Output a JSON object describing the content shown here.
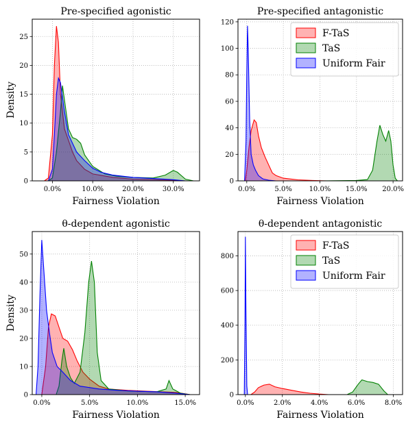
{
  "chart_data": [
    {
      "type": "area",
      "title": "Pre-specified agonistic",
      "xlabel": "Fairness Violation",
      "ylabel": "Density",
      "xlim": [
        -0.05,
        0.365
      ],
      "ylim": [
        0,
        28
      ],
      "xticks": [
        0.0,
        0.1,
        0.2,
        0.3
      ],
      "xtick_labels": [
        "0.0%",
        "10.0%",
        "20.0%",
        "30.0%"
      ],
      "yticks": [
        0,
        5,
        10,
        15,
        20,
        25
      ],
      "ytick_labels": [
        "0",
        "5",
        "10",
        "15",
        "20",
        "25"
      ],
      "grid": true,
      "legend": null,
      "series": [
        {
          "name": "F-TaS",
          "color": "#ff0000",
          "points": [
            [
              -0.02,
              0
            ],
            [
              -0.01,
              0.5
            ],
            [
              0.0,
              8
            ],
            [
              0.005,
              20
            ],
            [
              0.01,
              26.8
            ],
            [
              0.015,
              24
            ],
            [
              0.02,
              15
            ],
            [
              0.03,
              9
            ],
            [
              0.04,
              7
            ],
            [
              0.05,
              5
            ],
            [
              0.06,
              3.5
            ],
            [
              0.08,
              2
            ],
            [
              0.1,
              1.2
            ],
            [
              0.15,
              0.6
            ],
            [
              0.2,
              0.3
            ],
            [
              0.25,
              0.2
            ],
            [
              0.3,
              0.1
            ],
            [
              0.33,
              0
            ]
          ]
        },
        {
          "name": "TaS",
          "color": "#008000",
          "points": [
            [
              -0.01,
              0
            ],
            [
              0.0,
              0.5
            ],
            [
              0.01,
              5
            ],
            [
              0.02,
              12
            ],
            [
              0.025,
              16.5
            ],
            [
              0.03,
              14
            ],
            [
              0.04,
              9
            ],
            [
              0.05,
              7.5
            ],
            [
              0.06,
              7.2
            ],
            [
              0.07,
              6.5
            ],
            [
              0.08,
              4.5
            ],
            [
              0.1,
              2.5
            ],
            [
              0.13,
              1.2
            ],
            [
              0.16,
              0.8
            ],
            [
              0.2,
              0.6
            ],
            [
              0.25,
              0.5
            ],
            [
              0.28,
              1.0
            ],
            [
              0.3,
              1.8
            ],
            [
              0.31,
              1.5
            ],
            [
              0.33,
              0.3
            ],
            [
              0.35,
              0
            ]
          ]
        },
        {
          "name": "Uniform Fair",
          "color": "#0000ff",
          "points": [
            [
              -0.01,
              0
            ],
            [
              0.0,
              2
            ],
            [
              0.005,
              8
            ],
            [
              0.01,
              15
            ],
            [
              0.015,
              17.8
            ],
            [
              0.02,
              17
            ],
            [
              0.03,
              12
            ],
            [
              0.04,
              8
            ],
            [
              0.06,
              5
            ],
            [
              0.08,
              3.5
            ],
            [
              0.1,
              2.2
            ],
            [
              0.12,
              1.5
            ],
            [
              0.15,
              1.0
            ],
            [
              0.2,
              0.6
            ],
            [
              0.25,
              0.4
            ],
            [
              0.3,
              0.2
            ],
            [
              0.33,
              0
            ]
          ]
        }
      ]
    },
    {
      "type": "area",
      "title": "Pre-specified antagonistic",
      "xlabel": "Fairness Violation",
      "ylabel": "",
      "xlim": [
        -0.012,
        0.213
      ],
      "ylim": [
        0,
        122
      ],
      "xticks": [
        0.0,
        0.05,
        0.1,
        0.15,
        0.2
      ],
      "xtick_labels": [
        "0.0%",
        "5.0%",
        "10.0%",
        "15.0%",
        "20.0%"
      ],
      "yticks": [
        0,
        20,
        40,
        60,
        80,
        100,
        120
      ],
      "ytick_labels": [
        "0",
        "20",
        "40",
        "60",
        "80",
        "100",
        "120"
      ],
      "grid": true,
      "legend": "top-right",
      "series": [
        {
          "name": "F-TaS",
          "color": "#ff0000",
          "points": [
            [
              -0.002,
              0
            ],
            [
              0.0,
              8
            ],
            [
              0.003,
              25
            ],
            [
              0.006,
              38
            ],
            [
              0.01,
              46
            ],
            [
              0.013,
              44
            ],
            [
              0.016,
              34
            ],
            [
              0.02,
              25
            ],
            [
              0.025,
              18
            ],
            [
              0.03,
              12
            ],
            [
              0.035,
              6
            ],
            [
              0.04,
              4
            ],
            [
              0.05,
              2
            ],
            [
              0.07,
              0.8
            ],
            [
              0.09,
              0.3
            ],
            [
              0.11,
              0
            ]
          ]
        },
        {
          "name": "TaS",
          "color": "#008000",
          "points": [
            [
              0.1,
              0
            ],
            [
              0.15,
              0.3
            ],
            [
              0.165,
              1
            ],
            [
              0.172,
              8
            ],
            [
              0.178,
              30
            ],
            [
              0.182,
              42
            ],
            [
              0.186,
              35
            ],
            [
              0.19,
              30
            ],
            [
              0.194,
              38
            ],
            [
              0.197,
              30
            ],
            [
              0.2,
              12
            ],
            [
              0.203,
              2
            ],
            [
              0.206,
              0
            ]
          ]
        },
        {
          "name": "Uniform Fair",
          "color": "#0000ff",
          "points": [
            [
              -0.003,
              0
            ],
            [
              -0.001,
              30
            ],
            [
              0.0,
              80
            ],
            [
              0.001,
              117
            ],
            [
              0.002,
              100
            ],
            [
              0.004,
              45
            ],
            [
              0.006,
              20
            ],
            [
              0.009,
              12
            ],
            [
              0.012,
              8
            ],
            [
              0.016,
              4
            ],
            [
              0.022,
              1.5
            ],
            [
              0.03,
              0.5
            ],
            [
              0.04,
              0
            ]
          ]
        }
      ]
    },
    {
      "type": "area",
      "title": "θ-dependent agonistic",
      "xlabel": "Fairness Violation",
      "ylabel": "Density",
      "xlim": [
        -0.01,
        0.165
      ],
      "ylim": [
        0,
        58
      ],
      "xticks": [
        0.0,
        0.05,
        0.1,
        0.15
      ],
      "xtick_labels": [
        "0.0%",
        "5.0%",
        "10.0%",
        "15.0%"
      ],
      "yticks": [
        0,
        10,
        20,
        30,
        40,
        50
      ],
      "ytick_labels": [
        "0",
        "10",
        "20",
        "30",
        "40",
        "50"
      ],
      "grid": true,
      "legend": null,
      "series": [
        {
          "name": "F-TaS",
          "color": "#ff0000",
          "points": [
            [
              0.0,
              0
            ],
            [
              0.004,
              10
            ],
            [
              0.007,
              24
            ],
            [
              0.01,
              28.7
            ],
            [
              0.014,
              28
            ],
            [
              0.018,
              24
            ],
            [
              0.022,
              20
            ],
            [
              0.027,
              19
            ],
            [
              0.032,
              16
            ],
            [
              0.037,
              12
            ],
            [
              0.043,
              8
            ],
            [
              0.05,
              5.5
            ],
            [
              0.06,
              3
            ],
            [
              0.07,
              2
            ],
            [
              0.09,
              1.5
            ],
            [
              0.11,
              1.2
            ],
            [
              0.14,
              0.8
            ],
            [
              0.15,
              0.3
            ],
            [
              0.155,
              0
            ]
          ]
        },
        {
          "name": "TaS",
          "color": "#008000",
          "points": [
            [
              0.015,
              0
            ],
            [
              0.018,
              3
            ],
            [
              0.021,
              12
            ],
            [
              0.023,
              16.5
            ],
            [
              0.026,
              10
            ],
            [
              0.03,
              6
            ],
            [
              0.034,
              4
            ],
            [
              0.04,
              8
            ],
            [
              0.045,
              22
            ],
            [
              0.049,
              40
            ],
            [
              0.052,
              47.5
            ],
            [
              0.055,
              40
            ],
            [
              0.058,
              15
            ],
            [
              0.062,
              5
            ],
            [
              0.07,
              2
            ],
            [
              0.09,
              1.3
            ],
            [
              0.12,
              1.0
            ],
            [
              0.13,
              2
            ],
            [
              0.133,
              5
            ],
            [
              0.137,
              2
            ],
            [
              0.145,
              0.5
            ],
            [
              0.155,
              0
            ]
          ]
        },
        {
          "name": "Uniform Fair",
          "color": "#0000ff",
          "points": [
            [
              -0.006,
              0
            ],
            [
              -0.004,
              10
            ],
            [
              -0.002,
              35
            ],
            [
              0.0,
              55
            ],
            [
              0.002,
              45
            ],
            [
              0.005,
              30
            ],
            [
              0.008,
              22
            ],
            [
              0.011,
              15
            ],
            [
              0.016,
              10
            ],
            [
              0.022,
              8
            ],
            [
              0.03,
              5
            ],
            [
              0.04,
              3
            ],
            [
              0.06,
              2
            ],
            [
              0.08,
              1.5
            ],
            [
              0.1,
              1.2
            ],
            [
              0.12,
              1.0
            ],
            [
              0.14,
              0.5
            ],
            [
              0.155,
              0
            ]
          ]
        }
      ]
    },
    {
      "type": "area",
      "title": "θ-dependent antagonistic",
      "xlabel": "Fairness Violation",
      "ylabel": "",
      "xlim": [
        -0.004,
        0.085
      ],
      "ylim": [
        0,
        940
      ],
      "xticks": [
        0.0,
        0.02,
        0.04,
        0.06,
        0.08
      ],
      "xtick_labels": [
        "0.0%",
        "2.0%",
        "4.0%",
        "6.0%",
        "8.0%"
      ],
      "yticks": [
        0,
        200,
        400,
        600,
        800
      ],
      "ytick_labels": [
        "0",
        "200",
        "400",
        "600",
        "800"
      ],
      "grid": true,
      "legend": "top-right",
      "series": [
        {
          "name": "F-TaS",
          "color": "#ff0000",
          "points": [
            [
              0.003,
              0
            ],
            [
              0.005,
              15
            ],
            [
              0.007,
              40
            ],
            [
              0.01,
              55
            ],
            [
              0.013,
              60
            ],
            [
              0.016,
              45
            ],
            [
              0.02,
              35
            ],
            [
              0.025,
              25
            ],
            [
              0.03,
              15
            ],
            [
              0.035,
              8
            ],
            [
              0.04,
              3
            ],
            [
              0.045,
              0
            ]
          ]
        },
        {
          "name": "TaS",
          "color": "#008000",
          "points": [
            [
              0.055,
              0
            ],
            [
              0.058,
              15
            ],
            [
              0.061,
              60
            ],
            [
              0.063,
              85
            ],
            [
              0.066,
              75
            ],
            [
              0.069,
              70
            ],
            [
              0.072,
              60
            ],
            [
              0.075,
              20
            ],
            [
              0.077,
              0
            ]
          ]
        },
        {
          "name": "Uniform Fair",
          "color": "#0000ff",
          "points": [
            [
              -0.0006,
              0
            ],
            [
              -0.0002,
              400
            ],
            [
              0.0,
              910
            ],
            [
              0.0003,
              500
            ],
            [
              0.0008,
              50
            ],
            [
              0.0012,
              0
            ]
          ]
        }
      ]
    }
  ]
}
